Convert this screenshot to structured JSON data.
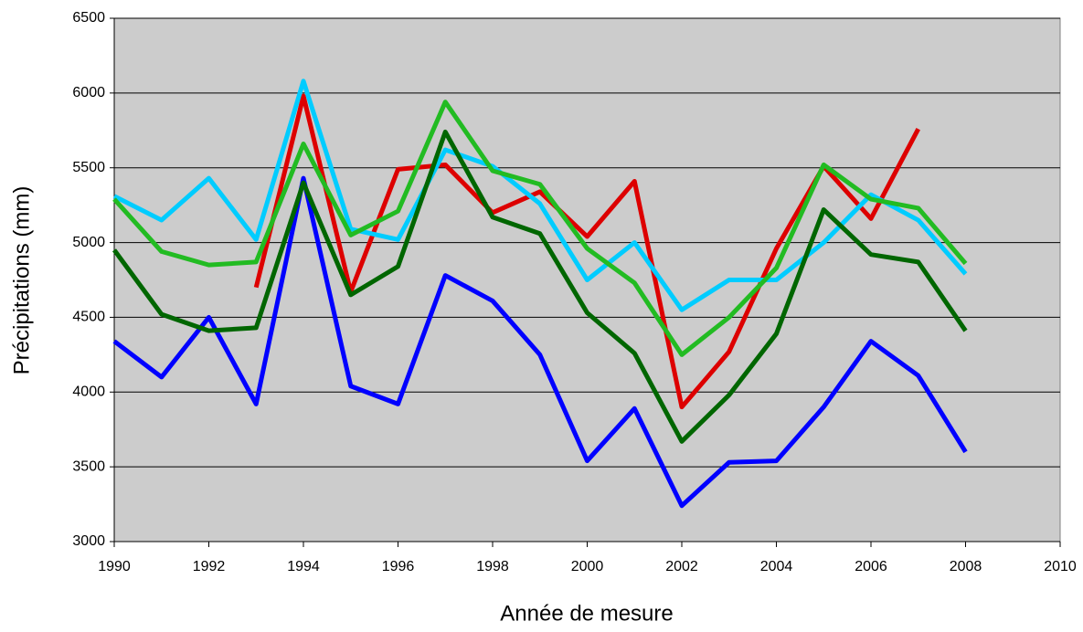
{
  "chart_data": {
    "type": "line",
    "xlabel": "Année de mesure",
    "ylabel": "Précipitations (mm)",
    "x": [
      1990,
      1991,
      1992,
      1993,
      1994,
      1995,
      1996,
      1997,
      1998,
      1999,
      2000,
      2001,
      2002,
      2003,
      2004,
      2005,
      2006,
      2007,
      2008
    ],
    "series": [
      {
        "color": "#0000ff",
        "values": [
          4340,
          4100,
          4500,
          3920,
          5430,
          4040,
          3920,
          4780,
          4610,
          4250,
          3540,
          3890,
          3240,
          3530,
          3540,
          3900,
          4340,
          4110,
          3600
        ]
      },
      {
        "color": "#dd0000",
        "values": [
          null,
          null,
          null,
          4700,
          5980,
          4670,
          5490,
          5520,
          5200,
          5340,
          5040,
          5410,
          3900,
          4270,
          4960,
          5510,
          5160,
          5760,
          null
        ]
      },
      {
        "color": "#00ccff",
        "values": [
          5310,
          5150,
          5430,
          5020,
          6080,
          5090,
          5020,
          5620,
          5510,
          5260,
          4750,
          5000,
          4550,
          4750,
          4750,
          5000,
          5320,
          5150,
          4790
        ]
      },
      {
        "color": "#22bb22",
        "values": [
          5290,
          4940,
          4850,
          4870,
          5660,
          5050,
          5210,
          5940,
          5480,
          5390,
          4960,
          4730,
          4250,
          4500,
          4830,
          5520,
          5290,
          5230,
          4860
        ]
      },
      {
        "color": "#006600",
        "values": [
          4950,
          4520,
          4410,
          4430,
          5400,
          4650,
          4840,
          5740,
          5170,
          5060,
          4530,
          4260,
          3670,
          3980,
          4390,
          5220,
          4920,
          4870,
          4410
        ]
      }
    ],
    "xlim": [
      1990,
      2010
    ],
    "xticks": [
      1990,
      1992,
      1994,
      1996,
      1998,
      2000,
      2002,
      2004,
      2006,
      2008,
      2010
    ],
    "ylim": [
      3000,
      6500
    ],
    "yticks": [
      3000,
      3500,
      4000,
      4500,
      5000,
      5500,
      6000,
      6500
    ],
    "grid": true
  }
}
